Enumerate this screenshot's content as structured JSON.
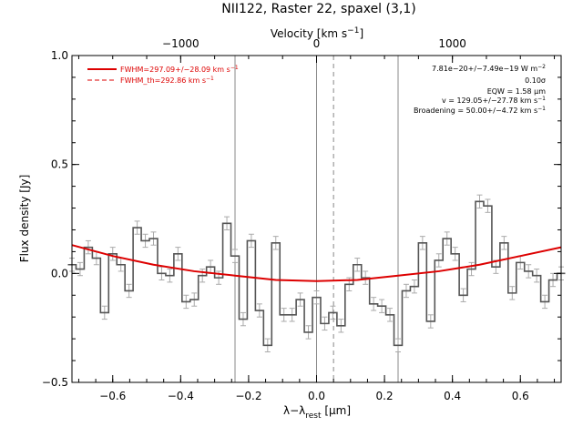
{
  "chart_data": {
    "type": "line",
    "title": "NII122, Raster 22, spaxel (3,1)",
    "xlabel_main": "λ−λ",
    "xlabel_sub": "rest",
    "xlabel_unit": " [μm]",
    "ylabel": "Flux density [Jy]",
    "top_axis_label_main": "Velocity [km s",
    "top_axis_label_exp": "−1",
    "top_axis_label_end": "]",
    "xlim": [
      -0.72,
      0.72
    ],
    "ylim": [
      -0.5,
      1.0
    ],
    "top_xlim": [
      -1800,
      1800
    ],
    "x_ticks": [
      -0.6,
      -0.4,
      -0.2,
      0.0,
      0.2,
      0.4,
      0.6
    ],
    "x_tick_labels": [
      "−0.6",
      "−0.4",
      "−0.2",
      "0.0",
      "0.2",
      "0.4",
      "0.6"
    ],
    "y_ticks": [
      -0.5,
      0.0,
      0.5,
      1.0
    ],
    "y_tick_labels": [
      "−0.5",
      "0.0",
      "0.5",
      "1.0"
    ],
    "top_ticks": [
      -1000,
      0,
      1000
    ],
    "top_tick_labels": [
      "−1000",
      "0",
      "1000"
    ],
    "vertical_lines": [
      -0.24,
      0.0,
      0.24
    ],
    "dashed_vertical_line": 0.05,
    "spectrum": {
      "x": [
        -0.72,
        -0.696,
        -0.672,
        -0.648,
        -0.624,
        -0.6,
        -0.576,
        -0.552,
        -0.528,
        -0.504,
        -0.48,
        -0.456,
        -0.432,
        -0.408,
        -0.384,
        -0.36,
        -0.336,
        -0.312,
        -0.288,
        -0.264,
        -0.24,
        -0.216,
        -0.192,
        -0.168,
        -0.144,
        -0.12,
        -0.096,
        -0.072,
        -0.048,
        -0.024,
        0.0,
        0.024,
        0.048,
        0.072,
        0.096,
        0.12,
        0.144,
        0.168,
        0.192,
        0.216,
        0.24,
        0.264,
        0.288,
        0.312,
        0.336,
        0.36,
        0.384,
        0.408,
        0.432,
        0.456,
        0.48,
        0.504,
        0.528,
        0.552,
        0.576,
        0.6,
        0.624,
        0.648,
        0.672,
        0.696,
        0.72
      ],
      "y": [
        0.04,
        0.02,
        0.12,
        0.07,
        -0.18,
        0.09,
        0.04,
        -0.08,
        0.21,
        0.15,
        0.16,
        0.0,
        -0.01,
        0.09,
        -0.13,
        -0.12,
        -0.01,
        0.03,
        -0.02,
        0.23,
        0.08,
        -0.21,
        0.15,
        -0.17,
        -0.33,
        0.14,
        -0.19,
        -0.19,
        -0.12,
        -0.27,
        -0.11,
        -0.23,
        -0.18,
        -0.24,
        -0.05,
        0.04,
        -0.02,
        -0.14,
        -0.15,
        -0.19,
        -0.33,
        -0.08,
        -0.06,
        0.14,
        -0.22,
        0.06,
        0.16,
        0.09,
        -0.1,
        0.02,
        0.33,
        0.31,
        0.03,
        0.14,
        -0.09,
        0.05,
        0.01,
        -0.01,
        -0.13,
        -0.03,
        0.0
      ],
      "err": 0.03
    },
    "fit": {
      "x": [
        -0.72,
        -0.6,
        -0.48,
        -0.36,
        -0.24,
        -0.12,
        0.0,
        0.12,
        0.24,
        0.36,
        0.48,
        0.6,
        0.72
      ],
      "y": [
        0.13,
        0.08,
        0.04,
        0.01,
        -0.01,
        -0.03,
        -0.035,
        -0.03,
        -0.01,
        0.01,
        0.04,
        0.08,
        0.12
      ]
    },
    "legend": {
      "placement": "top-left",
      "entries": [
        "FWHM=297.09+/−28.09 km s",
        "FWHM_th=292.86 km s"
      ],
      "exp": "−1",
      "color": "#dd0000"
    },
    "annotations": {
      "placement": "top-right",
      "lines": [
        {
          "main": "7.81e−20+/−7.49e−19 W m",
          "exp": "−2"
        },
        {
          "main": "0.10σ",
          "exp": ""
        },
        {
          "main": "EQW = 1.58 μm",
          "exp": ""
        },
        {
          "main": "v = 129.05+/−27.78 km s",
          "exp": "−1"
        },
        {
          "main": "Broadening = 50.00+/−4.72 km s",
          "exp": "−1"
        }
      ]
    },
    "colors": {
      "spectrum": "#555555",
      "errorbar": "#aaaaaa",
      "fit": "#dd0000",
      "vline": "#888888"
    }
  }
}
